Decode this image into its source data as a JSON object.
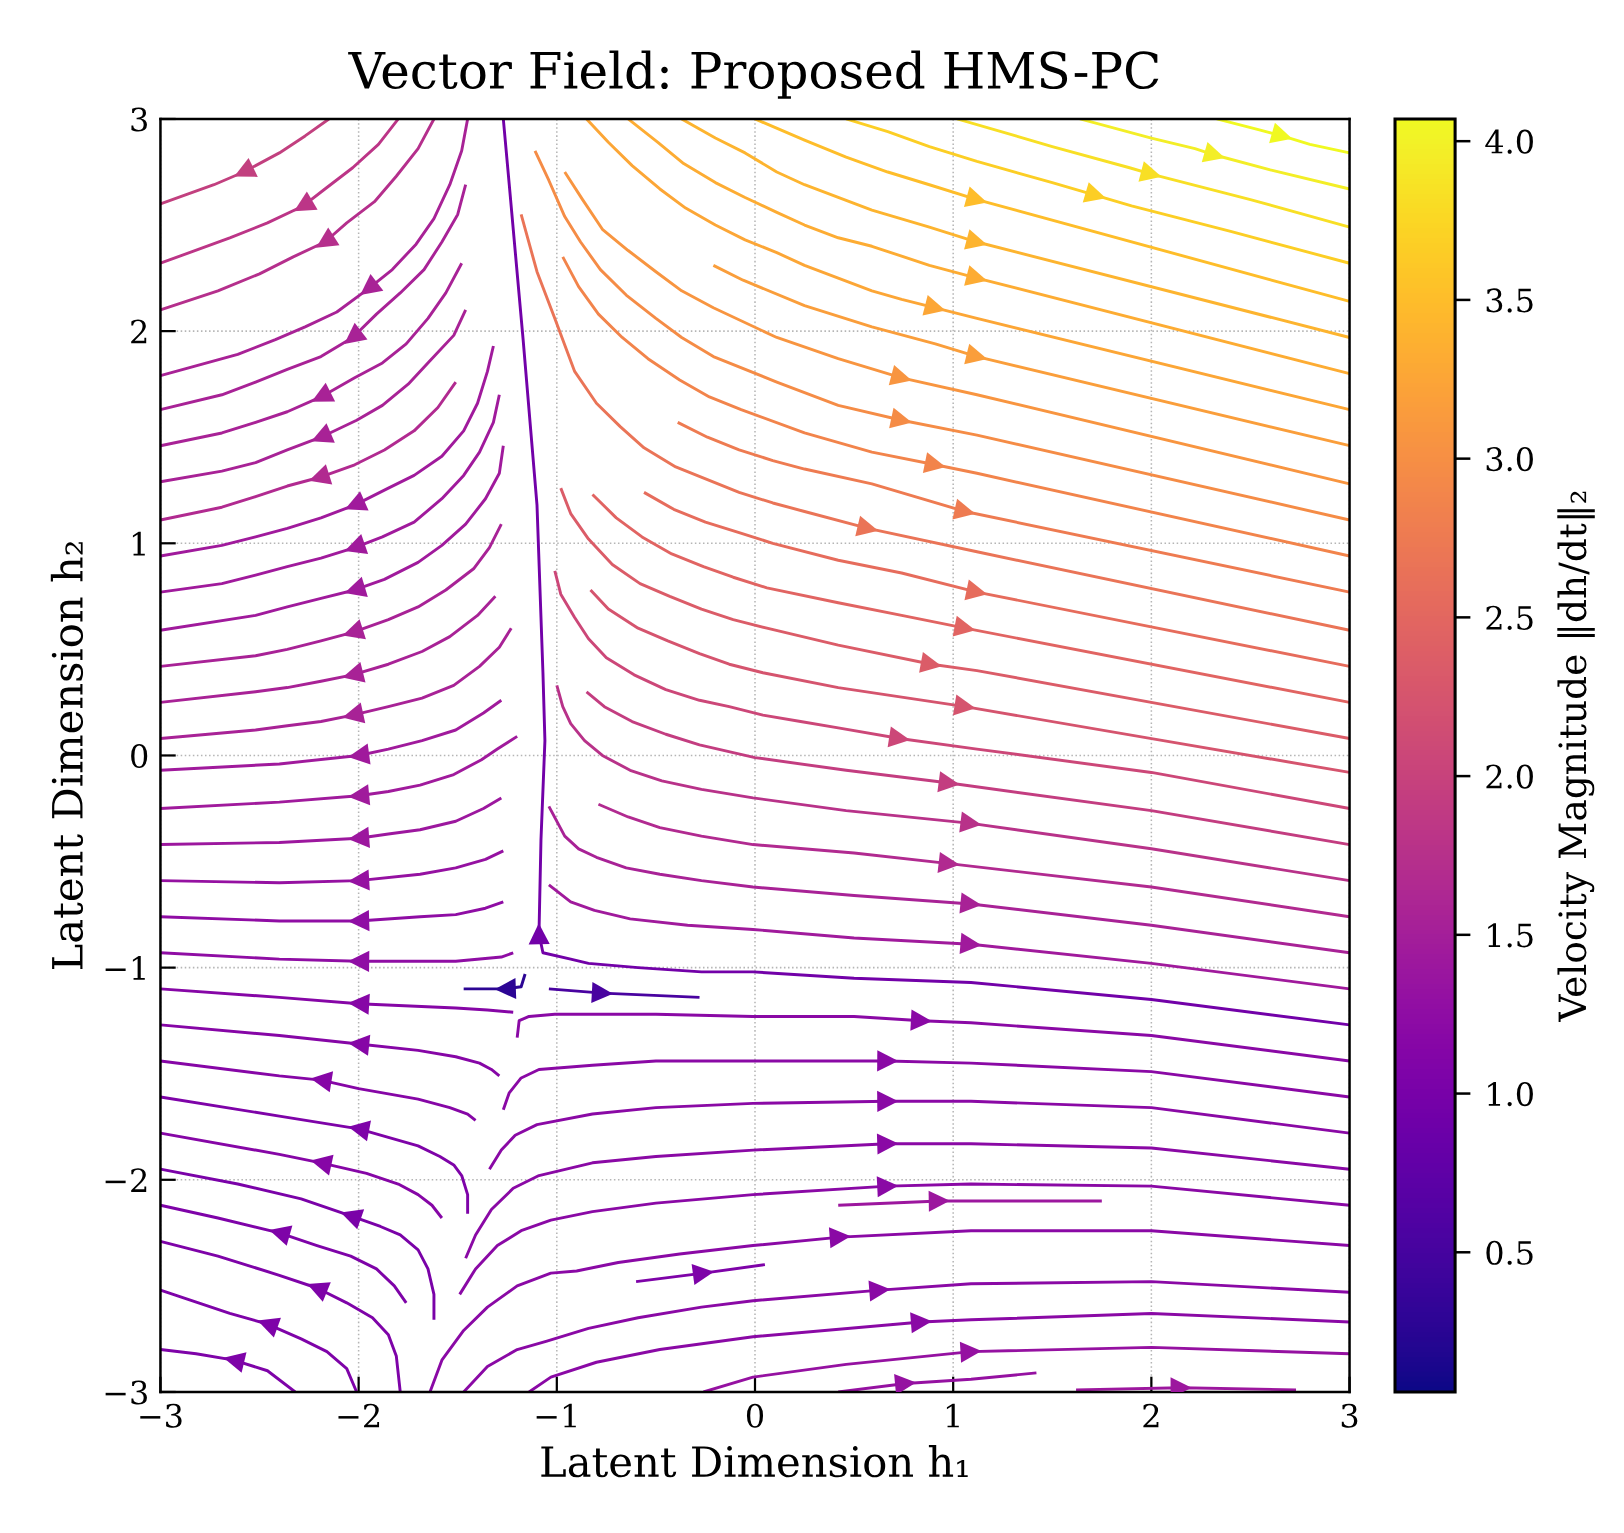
{
  "chart_data": {
    "type": "line",
    "title": "Vector Field: Proposed HMS-PC",
    "xlabel": "Latent Dimension h₁",
    "ylabel": "Latent Dimension h₂",
    "clabel": "Velocity Magnitude ‖dh/dt‖₂",
    "xlim": [
      -3,
      3
    ],
    "ylim": [
      -3,
      3
    ],
    "xticks": [
      {
        "value": -3,
        "label": "−3"
      },
      {
        "value": -2,
        "label": "−2"
      },
      {
        "value": -1,
        "label": "−1"
      },
      0,
      1,
      2,
      3
    ],
    "yticks": [
      {
        "value": -3,
        "label": "−3"
      },
      {
        "value": -2,
        "label": "−2"
      },
      {
        "value": -1,
        "label": "−1"
      },
      0,
      1,
      2,
      3
    ],
    "clim": [
      0.06,
      4.07
    ],
    "cticks": [
      0.5,
      {
        "value": 1,
        "label": "1.0"
      },
      1.5,
      {
        "value": 2,
        "label": "2.0"
      },
      2.5,
      {
        "value": 3,
        "label": "3.0"
      },
      3.5,
      {
        "value": 4,
        "label": "4.0"
      }
    ],
    "grid": true,
    "series": [
      {
        "color": "#f0f921",
        "x": [
          2.33,
          2.54,
          2.66,
          2.8,
          3.0
        ],
        "values": [
          3.0,
          2.95,
          2.92,
          2.88,
          2.84
        ]
      },
      {
        "color": "#f3ee27",
        "x": [
          1.64,
          2.0,
          2.22,
          2.32,
          2.6,
          3.0
        ],
        "values": [
          3.0,
          2.91,
          2.86,
          2.83,
          2.76,
          2.67
        ]
      },
      {
        "color": "#f8df25",
        "x": [
          1.02,
          1.5,
          1.89,
          2.0,
          2.5,
          3.0
        ],
        "values": [
          3.0,
          2.87,
          2.77,
          2.74,
          2.62,
          2.49
        ]
      },
      {
        "color": "#fcce25",
        "x": [
          0.46,
          0.67,
          0.88,
          1.12,
          1.5,
          1.72,
          1.9,
          2.4,
          3.0
        ],
        "values": [
          3.0,
          2.94,
          2.87,
          2.8,
          2.7,
          2.64,
          2.59,
          2.47,
          2.32
        ]
      },
      {
        "color": "#febd2a",
        "x": [
          0.0,
          0.25,
          0.46,
          0.67,
          0.88,
          1.12,
          3.0
        ],
        "values": [
          3.0,
          2.9,
          2.82,
          2.75,
          2.69,
          2.62,
          2.14
        ]
      },
      {
        "color": "#fdb42f",
        "x": [
          -0.37,
          -0.2,
          -0.05,
          0.11,
          0.25,
          0.42,
          0.59,
          0.88,
          1.12,
          3.0
        ],
        "values": [
          3.0,
          2.91,
          2.84,
          2.75,
          2.69,
          2.63,
          2.57,
          2.49,
          2.42,
          1.97
        ]
      },
      {
        "color": "#fdac33",
        "x": [
          -0.64,
          -0.49,
          -0.36,
          -0.2,
          -0.05,
          0.11,
          0.25,
          0.42,
          0.59,
          0.88,
          1.12,
          3.0
        ],
        "values": [
          3.0,
          2.89,
          2.79,
          2.7,
          2.63,
          2.56,
          2.5,
          2.44,
          2.4,
          2.31,
          2.25,
          1.8
        ]
      },
      {
        "color": "#fca636",
        "x": [
          -0.85,
          -0.74,
          -0.62,
          -0.48,
          -0.35,
          -0.2,
          -0.05,
          0.11,
          0.25,
          0.42,
          0.59,
          0.74,
          0.91,
          1.12,
          3.0
        ],
        "values": [
          3.0,
          2.89,
          2.78,
          2.67,
          2.58,
          2.5,
          2.43,
          2.37,
          2.31,
          2.25,
          2.19,
          2.15,
          2.11,
          2.06,
          1.63
        ]
      },
      {
        "color": "#fa9e3b",
        "x": [
          -0.21,
          -0.06,
          0.25,
          0.59,
          0.91,
          1.12,
          3.0
        ],
        "values": [
          2.31,
          2.24,
          2.12,
          2.02,
          1.94,
          1.88,
          1.46
        ]
      },
      {
        "color": "#f89540",
        "x": [
          -0.96,
          -0.87,
          -0.77,
          -0.64,
          -0.5,
          -0.37,
          -0.21,
          0.11,
          0.42,
          0.74,
          1.12,
          3.0
        ],
        "values": [
          2.75,
          2.62,
          2.48,
          2.38,
          2.28,
          2.19,
          2.11,
          1.97,
          1.87,
          1.78,
          1.7,
          1.28
        ]
      },
      {
        "color": "#f58c46",
        "x": [
          -1.11,
          -1.04,
          -0.96,
          -0.88,
          -0.78,
          -0.65,
          -0.5,
          -0.37,
          -0.21,
          0.11,
          0.42,
          0.74,
          1.12,
          3.0
        ],
        "values": [
          2.85,
          2.71,
          2.54,
          2.42,
          2.29,
          2.17,
          2.06,
          1.97,
          1.88,
          1.76,
          1.65,
          1.58,
          1.51,
          1.11
        ]
      },
      {
        "color": "#f2844b",
        "x": [
          -0.97,
          -0.89,
          -0.79,
          -0.67,
          -0.54,
          -0.38,
          -0.23,
          -0.07,
          0.25,
          0.59,
          0.91,
          1.12,
          3.0
        ],
        "values": [
          2.35,
          2.21,
          2.08,
          1.97,
          1.87,
          1.77,
          1.69,
          1.63,
          1.52,
          1.43,
          1.37,
          1.33,
          0.94
        ]
      },
      {
        "color": "#ee7b51",
        "x": [
          -0.39,
          -0.24,
          -0.08,
          0.09,
          0.25,
          0.59,
          1.06,
          3.0
        ],
        "values": [
          1.57,
          1.5,
          1.44,
          1.39,
          1.35,
          1.28,
          1.15,
          0.77
        ]
      },
      {
        "color": "#ea7457",
        "x": [
          -1.18,
          -1.1,
          -1.01,
          -0.91,
          -0.8,
          -0.68,
          -0.56,
          -0.4,
          -0.24,
          -0.08,
          0.09,
          0.25,
          0.57,
          1.12,
          3.0
        ],
        "values": [
          2.55,
          2.28,
          2.06,
          1.81,
          1.66,
          1.55,
          1.45,
          1.36,
          1.3,
          1.24,
          1.19,
          1.15,
          1.07,
          0.96,
          0.59
        ]
      },
      {
        "color": "#e66c5c",
        "x": [
          -0.56,
          -0.41,
          -0.25,
          -0.08,
          0.09,
          0.42,
          0.74,
          1.12,
          3.0
        ],
        "values": [
          1.24,
          1.16,
          1.1,
          1.05,
          1.0,
          0.92,
          0.86,
          0.77,
          0.42
        ]
      },
      {
        "color": "#e16462",
        "x": [
          -0.82,
          -0.7,
          -0.57,
          -0.42,
          -0.26,
          -0.11,
          0.06,
          0.42,
          0.74,
          1.06,
          3.0
        ],
        "values": [
          1.23,
          1.12,
          1.03,
          0.95,
          0.89,
          0.84,
          0.79,
          0.72,
          0.66,
          0.6,
          0.25
        ]
      },
      {
        "color": "#db5c68",
        "x": [
          -0.98,
          -0.93,
          -0.84,
          -0.72,
          -0.58,
          -0.43,
          -0.27,
          -0.11,
          0.06,
          0.42,
          0.89,
          1.12,
          3.0
        ],
        "values": [
          1.26,
          1.14,
          1.02,
          0.9,
          0.81,
          0.75,
          0.69,
          0.64,
          0.6,
          0.52,
          0.43,
          0.4,
          0.08
        ]
      },
      {
        "color": "#d5546e",
        "x": [
          -0.83,
          -0.74,
          -0.59,
          -0.44,
          -0.28,
          -0.13,
          0.04,
          0.42,
          1.06,
          2.06,
          3.0
        ],
        "values": [
          0.78,
          0.69,
          0.6,
          0.54,
          0.48,
          0.43,
          0.39,
          0.32,
          0.23,
          0.07,
          -0.08
        ]
      },
      {
        "color": "#cc4778",
        "x": [
          -1.01,
          -0.98,
          -0.91,
          -0.84,
          -0.75,
          -0.61,
          -0.45,
          -0.28,
          -0.13,
          0.04,
          0.23,
          0.42,
          0.73,
          1.12,
          2.0,
          3.0
        ],
        "values": [
          0.87,
          0.76,
          0.65,
          0.55,
          0.46,
          0.38,
          0.31,
          0.26,
          0.23,
          0.19,
          0.16,
          0.13,
          0.08,
          0.03,
          -0.08,
          -0.25
        ]
      },
      {
        "color": "#c33d80",
        "x": [
          -0.85,
          -0.76,
          -0.62,
          -0.45,
          -0.28,
          0.0,
          0.46,
          0.98,
          2.0,
          3.0
        ],
        "values": [
          0.3,
          0.23,
          0.16,
          0.1,
          0.05,
          -0.01,
          -0.07,
          -0.13,
          -0.26,
          -0.42
        ]
      },
      {
        "color": "#b83289",
        "x": [
          -1.0,
          -0.97,
          -0.93,
          -0.86,
          -0.77,
          -0.63,
          -0.47,
          -0.27,
          -0.01,
          0.46,
          1.09,
          2.0,
          3.0
        ],
        "values": [
          0.33,
          0.23,
          0.15,
          0.07,
          0.0,
          -0.07,
          -0.12,
          -0.16,
          -0.2,
          -0.26,
          -0.32,
          -0.44,
          -0.59
        ]
      },
      {
        "color": "#b12a90",
        "x": [
          -0.79,
          -0.64,
          -0.48,
          -0.27,
          -0.01,
          0.5,
          0.98,
          2.0,
          3.0
        ],
        "values": [
          -0.23,
          -0.29,
          -0.34,
          -0.38,
          -0.42,
          -0.46,
          -0.51,
          -0.62,
          -0.76
        ]
      },
      {
        "color": "#a82296",
        "x": [
          -1.04,
          -0.96,
          -0.89,
          -0.8,
          -0.65,
          -0.48,
          -0.27,
          -0.01,
          0.5,
          1.09,
          2.0,
          3.0
        ],
        "values": [
          -0.24,
          -0.38,
          -0.44,
          -0.48,
          -0.53,
          -0.56,
          -0.59,
          -0.62,
          -0.66,
          -0.7,
          -0.8,
          -0.93
        ]
      },
      {
        "color": "#a01a9c",
        "x": [
          -1.04,
          -0.93,
          -0.81,
          -0.63,
          -0.34,
          -0.01,
          0.5,
          1.09,
          2.0,
          3.0
        ],
        "values": [
          -0.61,
          -0.69,
          -0.73,
          -0.77,
          -0.8,
          -0.82,
          -0.86,
          -0.89,
          -0.98,
          -1.1
        ]
      },
      {
        "color": "#7201a8",
        "x": [
          3.0,
          2.0,
          1.09,
          0.5,
          -0.01,
          -0.27,
          -0.59,
          -0.84,
          -0.93,
          -1.07,
          -1.09,
          -1.08,
          -1.06,
          -1.07,
          -1.1,
          -1.17,
          -1.24,
          -1.27
        ],
        "values": [
          -1.27,
          -1.15,
          -1.07,
          -1.05,
          -1.02,
          -1.02,
          -1.0,
          -0.98,
          -0.96,
          -0.93,
          -0.84,
          -0.4,
          0.07,
          0.39,
          1.18,
          1.96,
          2.69,
          3.0
        ]
      },
      {
        "color": "#4903a0",
        "x": [
          -1.04,
          -0.77,
          -0.28
        ],
        "values": [
          -1.1,
          -1.12,
          -1.14
        ]
      },
      {
        "color": "#2c0594",
        "x": [
          -1.16,
          -1.18,
          -1.26,
          -1.47
        ],
        "values": [
          -1.03,
          -1.09,
          -1.1,
          -1.1
        ]
      },
      {
        "color": "#8a09a5",
        "x": [
          -1.2,
          -1.19,
          -1.14,
          -1.01,
          -0.5,
          -0.01,
          0.5,
          0.84,
          1.09,
          2.0,
          3.0
        ],
        "values": [
          -1.33,
          -1.25,
          -1.23,
          -1.22,
          -1.22,
          -1.23,
          -1.23,
          -1.25,
          -1.26,
          -1.32,
          -1.44
        ]
      },
      {
        "color": "#8a09a5",
        "x": [
          -1.27,
          -1.24,
          -1.18,
          -1.09,
          -0.82,
          -0.5,
          -0.01,
          0.67,
          1.09,
          2.0,
          3.0
        ],
        "values": [
          -1.67,
          -1.59,
          -1.52,
          -1.48,
          -1.46,
          -1.44,
          -1.44,
          -1.44,
          -1.45,
          -1.49,
          -1.61
        ]
      },
      {
        "color": "#8a09a5",
        "x": [
          -1.34,
          -1.28,
          -1.21,
          -1.1,
          -0.82,
          -0.5,
          -0.01,
          0.67,
          1.09,
          2.0,
          3.0
        ],
        "values": [
          -1.95,
          -1.86,
          -1.79,
          -1.74,
          -1.69,
          -1.66,
          -1.64,
          -1.63,
          -1.63,
          -1.66,
          -1.78
        ]
      },
      {
        "color": "#8a09a5",
        "x": [
          -1.46,
          -1.41,
          -1.33,
          -1.22,
          -1.09,
          -0.82,
          -0.5,
          -0.01,
          0.67,
          1.09,
          2.0,
          3.0
        ],
        "values": [
          -2.37,
          -2.26,
          -2.14,
          -2.04,
          -1.98,
          -1.92,
          -1.89,
          -1.86,
          -1.83,
          -1.83,
          -1.85,
          -1.95
        ]
      },
      {
        "color": "#8a09a5",
        "x": [
          -1.49,
          -1.41,
          -1.3,
          -1.18,
          -1.03,
          -0.82,
          -0.5,
          -0.01,
          0.67,
          1.09,
          2.0,
          3.0
        ],
        "values": [
          -2.54,
          -2.42,
          -2.31,
          -2.24,
          -2.19,
          -2.15,
          -2.11,
          -2.07,
          -2.03,
          -2.02,
          -2.03,
          -2.12
        ]
      },
      {
        "color": "#9c179e",
        "x": [
          0.42,
          0.93,
          1.75
        ],
        "values": [
          -2.12,
          -2.1,
          -2.1
        ]
      },
      {
        "color": "#8a09a5",
        "x": [
          -1.64,
          -1.58,
          -1.47,
          -1.35,
          -1.2,
          -1.03,
          -0.9,
          -0.69,
          -0.38,
          -0.01,
          0.43,
          1.09,
          2.0,
          3.0
        ],
        "values": [
          -3.0,
          -2.85,
          -2.71,
          -2.6,
          -2.5,
          -2.44,
          -2.43,
          -2.39,
          -2.35,
          -2.31,
          -2.27,
          -2.24,
          -2.24,
          -2.31
        ]
      },
      {
        "color": "#7e03a8",
        "x": [
          -0.6,
          -0.26,
          0.05
        ],
        "values": [
          -2.48,
          -2.44,
          -2.4
        ]
      },
      {
        "color": "#8a09a5",
        "x": [
          -1.47,
          -1.35,
          -1.2,
          -1.05,
          -0.84,
          -0.59,
          -0.27,
          -0.01,
          0.63,
          1.09,
          2.0,
          3.0
        ],
        "values": [
          -3.0,
          -2.88,
          -2.8,
          -2.76,
          -2.7,
          -2.65,
          -2.6,
          -2.57,
          -2.52,
          -2.49,
          -2.48,
          -2.53
        ]
      },
      {
        "color": "#8a09a5",
        "x": [
          -1.14,
          -1.03,
          -0.8,
          -0.48,
          -0.01,
          0.84,
          1.09,
          2.0,
          3.0
        ],
        "values": [
          -3.0,
          -2.93,
          -2.86,
          -2.8,
          -2.74,
          -2.67,
          -2.66,
          -2.63,
          -2.67
        ]
      },
      {
        "color": "#9511a1",
        "x": [
          -0.26,
          -0.01,
          0.46,
          1.09,
          2.0,
          3.0
        ],
        "values": [
          -3.0,
          -2.93,
          -2.87,
          -2.81,
          -2.79,
          -2.82
        ]
      },
      {
        "color": "#9511a1",
        "x": [
          0.42,
          0.76,
          1.09,
          1.42
        ],
        "values": [
          -3.0,
          -2.96,
          -2.94,
          -2.91
        ]
      },
      {
        "color": "#9c179e",
        "x": [
          1.62,
          2.15,
          2.73
        ],
        "values": [
          -2.99,
          -2.98,
          -2.99
        ]
      },
      {
        "color": "#c2407f",
        "x": [
          -2.15,
          -2.27,
          -2.4,
          -2.58,
          -2.73,
          -3.0
        ],
        "values": [
          3.0,
          2.92,
          2.84,
          2.75,
          2.69,
          2.6
        ]
      },
      {
        "color": "#bc3587",
        "x": [
          -1.8,
          -1.9,
          -2.03,
          -2.17,
          -2.28,
          -2.46,
          -2.65,
          -3.0
        ],
        "values": [
          3.0,
          2.88,
          2.77,
          2.67,
          2.59,
          2.51,
          2.44,
          2.32
        ]
      },
      {
        "color": "#b52f8c",
        "x": [
          -1.62,
          -1.7,
          -1.81,
          -1.92,
          -2.06,
          -2.17,
          -2.33,
          -2.5,
          -2.71,
          -3.0
        ],
        "values": [
          3.0,
          2.86,
          2.73,
          2.61,
          2.51,
          2.42,
          2.35,
          2.27,
          2.19,
          2.1
        ]
      },
      {
        "color": "#a82296",
        "x": [
          -1.45,
          -1.48,
          -1.54,
          -1.62,
          -1.71,
          -1.83,
          -1.95,
          -2.11,
          -2.27,
          -2.42,
          -2.61,
          -3.0
        ],
        "values": [
          3.0,
          2.85,
          2.69,
          2.53,
          2.41,
          2.29,
          2.2,
          2.09,
          2.02,
          1.96,
          1.89,
          1.79
        ]
      },
      {
        "color": "#a82296",
        "x": [
          -1.46,
          -1.5,
          -1.58,
          -1.67,
          -1.79,
          -1.91,
          -2.03,
          -2.19,
          -2.36,
          -2.52,
          -2.69,
          -3.0
        ],
        "values": [
          2.69,
          2.55,
          2.42,
          2.29,
          2.18,
          2.08,
          1.97,
          1.88,
          1.82,
          1.76,
          1.7,
          1.63
        ]
      },
      {
        "color": "#a82296",
        "x": [
          -1.48,
          -1.56,
          -1.65,
          -1.76,
          -1.88,
          -2.02,
          -2.19,
          -2.36,
          -2.52,
          -2.69,
          -3.0
        ],
        "values": [
          2.32,
          2.18,
          2.06,
          1.94,
          1.85,
          1.78,
          1.69,
          1.62,
          1.57,
          1.52,
          1.46
        ]
      },
      {
        "color": "#a82296",
        "x": [
          -1.46,
          -1.52,
          -1.64,
          -1.75,
          -1.88,
          -2.01,
          -2.19,
          -2.36,
          -2.52,
          -2.69,
          -3.0
        ],
        "values": [
          2.1,
          1.98,
          1.86,
          1.75,
          1.65,
          1.58,
          1.5,
          1.44,
          1.38,
          1.34,
          1.29
        ]
      },
      {
        "color": "#b12a90",
        "x": [
          -1.51,
          -1.6,
          -1.72,
          -1.87,
          -2.02,
          -2.2,
          -2.36,
          -2.52,
          -2.69,
          -3.0
        ],
        "values": [
          1.76,
          1.64,
          1.53,
          1.44,
          1.37,
          1.31,
          1.27,
          1.22,
          1.17,
          1.11
        ]
      },
      {
        "color": "#a01a9c",
        "x": [
          -1.32,
          -1.35,
          -1.4,
          -1.47,
          -1.58,
          -1.72,
          -1.85,
          -2.02,
          -2.19,
          -2.36,
          -2.52,
          -2.69,
          -3.0
        ],
        "values": [
          1.93,
          1.81,
          1.66,
          1.53,
          1.41,
          1.32,
          1.26,
          1.18,
          1.12,
          1.07,
          1.03,
          0.99,
          0.94
        ]
      },
      {
        "color": "#a01a9c",
        "x": [
          -1.29,
          -1.32,
          -1.39,
          -1.47,
          -1.58,
          -1.72,
          -1.88,
          -2.02,
          -2.19,
          -2.36,
          -2.52,
          -2.69,
          -3.0
        ],
        "values": [
          1.7,
          1.57,
          1.43,
          1.32,
          1.21,
          1.1,
          1.03,
          0.98,
          0.93,
          0.89,
          0.85,
          0.81,
          0.77
        ]
      },
      {
        "color": "#a01a9c",
        "x": [
          -1.27,
          -1.29,
          -1.36,
          -1.46,
          -1.58,
          -1.7,
          -1.87,
          -2.02,
          -2.19,
          -2.36,
          -2.52,
          -3.0
        ],
        "values": [
          1.46,
          1.33,
          1.21,
          1.09,
          0.99,
          0.91,
          0.83,
          0.78,
          0.74,
          0.7,
          0.66,
          0.59
        ]
      },
      {
        "color": "#a82296",
        "x": [
          -1.28,
          -1.34,
          -1.42,
          -1.56,
          -1.7,
          -1.85,
          -2.03,
          -2.19,
          -2.36,
          -2.52,
          -3.0
        ],
        "values": [
          1.09,
          0.98,
          0.88,
          0.78,
          0.7,
          0.64,
          0.58,
          0.54,
          0.5,
          0.47,
          0.42
        ]
      },
      {
        "color": "#a82296",
        "x": [
          -1.31,
          -1.4,
          -1.54,
          -1.68,
          -1.85,
          -2.03,
          -2.19,
          -2.36,
          -2.52,
          -3.0
        ],
        "values": [
          0.75,
          0.66,
          0.56,
          0.49,
          0.43,
          0.38,
          0.35,
          0.32,
          0.3,
          0.25
        ]
      },
      {
        "color": "#a82296",
        "x": [
          -1.23,
          -1.29,
          -1.39,
          -1.52,
          -1.68,
          -1.85,
          -2.03,
          -2.19,
          -2.36,
          -2.52,
          -3.0
        ],
        "values": [
          0.6,
          0.51,
          0.42,
          0.33,
          0.27,
          0.23,
          0.19,
          0.16,
          0.14,
          0.12,
          0.08
        ]
      },
      {
        "color": "#a01a9c",
        "x": [
          -1.28,
          -1.37,
          -1.51,
          -1.68,
          -1.85,
          -2.0,
          -2.4,
          -3.0
        ],
        "values": [
          0.26,
          0.2,
          0.12,
          0.07,
          0.03,
          0.0,
          -0.04,
          -0.07
        ]
      },
      {
        "color": "#a01a9c",
        "x": [
          -1.2,
          -1.3,
          -1.38,
          -1.52,
          -1.69,
          -1.85,
          -2.0,
          -2.4,
          -3.0
        ],
        "values": [
          0.09,
          0.03,
          -0.02,
          -0.09,
          -0.14,
          -0.17,
          -0.19,
          -0.22,
          -0.25
        ]
      },
      {
        "color": "#9c179e",
        "x": [
          -1.28,
          -1.37,
          -1.51,
          -1.69,
          -1.85,
          -2.0,
          -2.4,
          -3.0
        ],
        "values": [
          -0.2,
          -0.25,
          -0.31,
          -0.35,
          -0.37,
          -0.39,
          -0.41,
          -0.42
        ]
      },
      {
        "color": "#9511a1",
        "x": [
          -1.27,
          -1.36,
          -1.51,
          -1.69,
          -2.0,
          -2.4,
          -3.0
        ],
        "values": [
          -0.45,
          -0.49,
          -0.53,
          -0.56,
          -0.59,
          -0.6,
          -0.59
        ]
      },
      {
        "color": "#8f0da4",
        "x": [
          -1.27,
          -1.36,
          -1.51,
          -1.69,
          -2.0,
          -2.4,
          -3.0
        ],
        "values": [
          -0.69,
          -0.72,
          -0.75,
          -0.76,
          -0.78,
          -0.78,
          -0.76
        ]
      },
      {
        "color": "#8f0da4",
        "x": [
          -1.22,
          -1.28,
          -1.51,
          -2.0,
          -2.4,
          -3.0
        ],
        "values": [
          -0.93,
          -0.95,
          -0.97,
          -0.97,
          -0.96,
          -0.93
        ]
      },
      {
        "color": "#8606a6",
        "x": [
          -1.22,
          -1.35,
          -1.51,
          -2.0,
          -2.4,
          -3.0
        ],
        "values": [
          -1.21,
          -1.2,
          -1.19,
          -1.17,
          -1.14,
          -1.1
        ]
      },
      {
        "color": "#8606a6",
        "x": [
          -1.29,
          -1.33,
          -1.39,
          -1.51,
          -1.7,
          -2.0,
          -2.4,
          -3.0
        ],
        "values": [
          -1.51,
          -1.48,
          -1.45,
          -1.42,
          -1.39,
          -1.36,
          -1.32,
          -1.27
        ]
      },
      {
        "color": "#8606a6",
        "x": [
          -1.41,
          -1.45,
          -1.54,
          -1.7,
          -2.0,
          -2.19,
          -2.4,
          -3.0
        ],
        "values": [
          -1.72,
          -1.69,
          -1.66,
          -1.62,
          -1.57,
          -1.53,
          -1.51,
          -1.44
        ]
      },
      {
        "color": "#7e03a8",
        "x": [
          -1.45,
          -1.45,
          -1.48,
          -1.52,
          -1.59,
          -1.7,
          -1.85,
          -2.0,
          -2.4,
          -3.0
        ],
        "values": [
          -2.16,
          -2.07,
          -1.98,
          -1.93,
          -1.89,
          -1.84,
          -1.8,
          -1.76,
          -1.7,
          -1.61
        ]
      },
      {
        "color": "#8606a6",
        "x": [
          -1.58,
          -1.63,
          -1.7,
          -1.8,
          -1.96,
          -2.19,
          -2.4,
          -3.0
        ],
        "values": [
          -2.18,
          -2.12,
          -2.07,
          -2.02,
          -1.97,
          -1.92,
          -1.88,
          -1.78
        ]
      },
      {
        "color": "#7a02a8",
        "x": [
          -1.62,
          -1.62,
          -1.65,
          -1.7,
          -1.79,
          -1.89,
          -2.04,
          -2.29,
          -2.61,
          -3.0
        ],
        "values": [
          -2.66,
          -2.54,
          -2.42,
          -2.33,
          -2.26,
          -2.22,
          -2.17,
          -2.09,
          -2.02,
          -1.95
        ]
      },
      {
        "color": "#7e03a8",
        "x": [
          -1.76,
          -1.82,
          -1.91,
          -2.04,
          -2.21,
          -2.4,
          -2.71,
          -3.0
        ],
        "values": [
          -2.58,
          -2.5,
          -2.42,
          -2.36,
          -2.31,
          -2.25,
          -2.18,
          -2.12
        ]
      },
      {
        "color": "#7e03a8",
        "x": [
          -1.79,
          -1.81,
          -1.85,
          -1.93,
          -2.06,
          -2.21,
          -2.4,
          -2.71,
          -3.0
        ],
        "values": [
          -3.0,
          -2.83,
          -2.73,
          -2.65,
          -2.58,
          -2.51,
          -2.45,
          -2.36,
          -2.29
        ]
      },
      {
        "color": "#7e03a8",
        "x": [
          -2.01,
          -2.06,
          -2.16,
          -2.29,
          -2.46,
          -2.65,
          -3.0
        ],
        "values": [
          -3.0,
          -2.89,
          -2.81,
          -2.75,
          -2.68,
          -2.63,
          -2.52
        ]
      },
      {
        "color": "#7e03a8",
        "x": [
          -2.32,
          -2.46,
          -2.63,
          -2.82,
          -3.0
        ],
        "values": [
          -3.0,
          -2.9,
          -2.85,
          -2.82,
          -2.8
        ]
      }
    ]
  }
}
